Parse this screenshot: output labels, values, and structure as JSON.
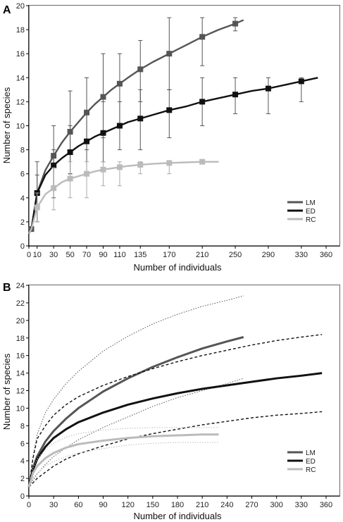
{
  "chart_data": [
    {
      "panel": "A",
      "type": "line",
      "xlabel": "Number of individuals",
      "ylabel": "Number of species",
      "xlim": [
        0,
        360
      ],
      "ylim": [
        0,
        20
      ],
      "xticks": [
        0,
        10,
        30,
        50,
        70,
        90,
        110,
        135,
        170,
        210,
        250,
        290,
        330,
        360
      ],
      "yticks": [
        0,
        2,
        4,
        6,
        8,
        10,
        12,
        14,
        16,
        18,
        20
      ],
      "legend": {
        "position": "bottom-right",
        "entries": [
          "LM",
          "ED",
          "RC"
        ]
      },
      "series": [
        {
          "name": "LM",
          "color": "#555555",
          "x": [
            0,
            3,
            10,
            20,
            30,
            40,
            50,
            60,
            70,
            80,
            90,
            100,
            110,
            120,
            135,
            150,
            170,
            190,
            210,
            230,
            250,
            260
          ],
          "y": [
            1,
            1.4,
            4.4,
            6.3,
            7.5,
            8.6,
            9.5,
            10.3,
            11.1,
            11.8,
            12.4,
            13.0,
            13.5,
            14.0,
            14.7,
            15.3,
            16.0,
            16.7,
            17.4,
            18.0,
            18.5,
            18.8
          ],
          "markers": [
            {
              "x": 3,
              "y": 1.4,
              "lo": 1.2,
              "hi": 1.6
            },
            {
              "x": 10,
              "y": 4.4,
              "lo": 2,
              "hi": 7
            },
            {
              "x": 30,
              "y": 7.5,
              "lo": 5,
              "hi": 10
            },
            {
              "x": 50,
              "y": 9.5,
              "lo": 6,
              "hi": 12.9
            },
            {
              "x": 70,
              "y": 11.1,
              "lo": 8,
              "hi": 14
            },
            {
              "x": 90,
              "y": 12.4,
              "lo": 9,
              "hi": 16
            },
            {
              "x": 110,
              "y": 13.5,
              "lo": 10,
              "hi": 16
            },
            {
              "x": 135,
              "y": 14.7,
              "lo": 12,
              "hi": 17.1
            },
            {
              "x": 170,
              "y": 16.0,
              "lo": 13,
              "hi": 19
            },
            {
              "x": 210,
              "y": 17.4,
              "lo": 15,
              "hi": 19
            },
            {
              "x": 250,
              "y": 18.5,
              "lo": 17.9,
              "hi": 19
            }
          ]
        },
        {
          "name": "ED",
          "color": "#111111",
          "x": [
            0,
            3,
            10,
            20,
            30,
            40,
            50,
            60,
            70,
            80,
            90,
            100,
            110,
            120,
            135,
            150,
            170,
            190,
            210,
            230,
            250,
            270,
            290,
            310,
            330,
            350
          ],
          "y": [
            1,
            1.4,
            4.4,
            5.9,
            6.7,
            7.3,
            7.8,
            8.3,
            8.7,
            9.1,
            9.4,
            9.7,
            10.0,
            10.3,
            10.6,
            10.9,
            11.3,
            11.6,
            12.0,
            12.3,
            12.6,
            12.9,
            13.1,
            13.4,
            13.7,
            14.0
          ],
          "markers": [
            {
              "x": 10,
              "y": 4.4,
              "lo": 2,
              "hi": 5.9
            },
            {
              "x": 30,
              "y": 6.7,
              "lo": 4,
              "hi": 8
            },
            {
              "x": 50,
              "y": 7.8,
              "lo": 6,
              "hi": 10
            },
            {
              "x": 70,
              "y": 8.7,
              "lo": 6,
              "hi": 11
            },
            {
              "x": 90,
              "y": 9.4,
              "lo": 7,
              "hi": 12
            },
            {
              "x": 110,
              "y": 10.0,
              "lo": 8,
              "hi": 12
            },
            {
              "x": 135,
              "y": 10.6,
              "lo": 8,
              "hi": 13
            },
            {
              "x": 170,
              "y": 11.3,
              "lo": 9,
              "hi": 13
            },
            {
              "x": 210,
              "y": 12.0,
              "lo": 10,
              "hi": 14
            },
            {
              "x": 250,
              "y": 12.6,
              "lo": 11,
              "hi": 14
            },
            {
              "x": 290,
              "y": 13.1,
              "lo": 11,
              "hi": 14
            },
            {
              "x": 330,
              "y": 13.7,
              "lo": 12,
              "hi": 14
            }
          ]
        },
        {
          "name": "RC",
          "color": "#bbbbbb",
          "x": [
            0,
            3,
            10,
            20,
            30,
            40,
            50,
            60,
            70,
            80,
            90,
            100,
            110,
            120,
            135,
            150,
            170,
            190,
            210,
            230
          ],
          "y": [
            1,
            1.4,
            3.2,
            4.3,
            4.8,
            5.3,
            5.6,
            5.8,
            6.0,
            6.2,
            6.35,
            6.45,
            6.55,
            6.65,
            6.75,
            6.83,
            6.9,
            6.95,
            7.0,
            7.0
          ],
          "markers": [
            {
              "x": 10,
              "y": 3.2,
              "lo": 2,
              "hi": 4.4
            },
            {
              "x": 30,
              "y": 4.8,
              "lo": 3,
              "hi": 6.5
            },
            {
              "x": 50,
              "y": 5.6,
              "lo": 4,
              "hi": 7
            },
            {
              "x": 70,
              "y": 6.0,
              "lo": 4,
              "hi": 7
            },
            {
              "x": 90,
              "y": 6.35,
              "lo": 5,
              "hi": 7
            },
            {
              "x": 110,
              "y": 6.55,
              "lo": 5,
              "hi": 7
            },
            {
              "x": 135,
              "y": 6.75,
              "lo": 6,
              "hi": 7
            },
            {
              "x": 170,
              "y": 6.9,
              "lo": 6,
              "hi": 7
            },
            {
              "x": 210,
              "y": 7.0,
              "lo": 7,
              "hi": 7
            }
          ]
        }
      ]
    },
    {
      "panel": "B",
      "type": "line",
      "xlabel": "Number of individuals",
      "ylabel": "Number of species",
      "xlim": [
        0,
        360
      ],
      "ylim": [
        0,
        24
      ],
      "xticks": [
        0,
        30,
        60,
        90,
        120,
        150,
        180,
        210,
        240,
        270,
        300,
        330,
        360
      ],
      "yticks": [
        0,
        2,
        4,
        6,
        8,
        10,
        12,
        14,
        16,
        18,
        20,
        22,
        24
      ],
      "legend": {
        "position": "bottom-right",
        "entries": [
          "LM",
          "ED",
          "RC"
        ]
      },
      "series": [
        {
          "name": "LM",
          "color": "#555555",
          "x": [
            0,
            5,
            10,
            20,
            30,
            45,
            60,
            90,
            120,
            150,
            180,
            210,
            240,
            260
          ],
          "y": [
            1,
            3.2,
            4.5,
            6.2,
            7.4,
            8.8,
            10.0,
            11.9,
            13.4,
            14.7,
            15.8,
            16.8,
            17.6,
            18.1
          ],
          "ci_upper": [
            1,
            4.5,
            7.0,
            9.5,
            11.0,
            12.8,
            14.2,
            16.5,
            18.2,
            19.6,
            20.7,
            21.6,
            22.3,
            22.8
          ],
          "ci_lower": [
            1,
            1.8,
            2.5,
            3.6,
            4.5,
            5.5,
            6.4,
            7.8,
            9.0,
            10.2,
            11.2,
            12.0,
            12.8,
            13.4
          ]
        },
        {
          "name": "ED",
          "color": "#111111",
          "x": [
            0,
            5,
            10,
            20,
            30,
            45,
            60,
            90,
            120,
            150,
            180,
            210,
            240,
            270,
            300,
            330,
            355
          ],
          "y": [
            1,
            3.0,
            4.2,
            5.6,
            6.6,
            7.6,
            8.4,
            9.5,
            10.4,
            11.1,
            11.7,
            12.2,
            12.6,
            13.0,
            13.4,
            13.7,
            14.0
          ],
          "ci_upper": [
            1,
            4.3,
            6.5,
            8.0,
            9.2,
            10.4,
            11.3,
            12.6,
            13.6,
            14.5,
            15.3,
            16.0,
            16.6,
            17.2,
            17.7,
            18.1,
            18.4
          ],
          "ci_lower": [
            1,
            1.5,
            2.0,
            2.7,
            3.4,
            4.2,
            4.8,
            5.7,
            6.5,
            7.1,
            7.6,
            8.1,
            8.5,
            8.9,
            9.2,
            9.4,
            9.6
          ]
        },
        {
          "name": "RC",
          "color": "#bbbbbb",
          "x": [
            0,
            5,
            10,
            20,
            30,
            45,
            60,
            90,
            120,
            150,
            180,
            210,
            230
          ],
          "y": [
            1,
            2.6,
            3.4,
            4.3,
            4.9,
            5.5,
            5.9,
            6.3,
            6.6,
            6.8,
            6.9,
            7.0,
            7.0
          ],
          "ci_upper": [
            1,
            3.2,
            4.2,
            5.3,
            6.0,
            6.7,
            7.1,
            7.5,
            7.7,
            7.8,
            7.8,
            7.8,
            7.8
          ],
          "ci_lower": [
            1,
            2.0,
            2.6,
            3.4,
            3.9,
            4.5,
            4.9,
            5.4,
            5.8,
            6.0,
            6.1,
            6.1,
            6.1
          ]
        }
      ]
    }
  ]
}
